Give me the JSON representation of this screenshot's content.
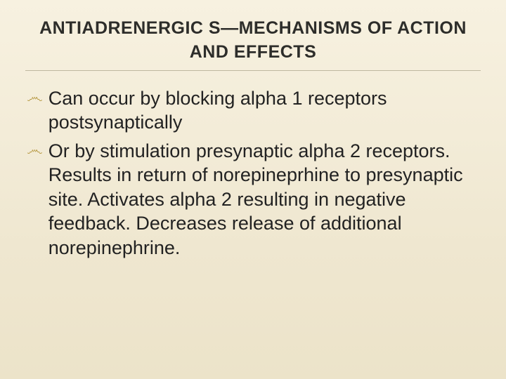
{
  "slide": {
    "background_gradient": [
      "#f7f1e0",
      "#f3ecd8",
      "#efe7d0",
      "#ece3c9"
    ],
    "title": {
      "text": "ANTIADRENERGIC S—MECHANISMS OF ACTION AND EFFECTS",
      "font_size_pt": 25,
      "font_weight": 700,
      "color": "#2d2d2a",
      "underline_color": "rgba(90,80,50,0.35)",
      "align": "center"
    },
    "bullet_style": {
      "glyph": "෴",
      "glyph_color": "#b79a44",
      "glyph_font_family": "cursive",
      "text_color": "#222222",
      "font_size_pt": 27,
      "line_height": 1.28
    },
    "bullets": [
      {
        "text": "Can occur by blocking alpha 1 receptors postsynaptically"
      },
      {
        "text": "Or by stimulation presynaptic alpha 2 receptors. Results in return of norepineprhine to presynaptic site. Activates alpha 2 resulting in negative feedback. Decreases release of additional norepinephrine."
      }
    ]
  }
}
